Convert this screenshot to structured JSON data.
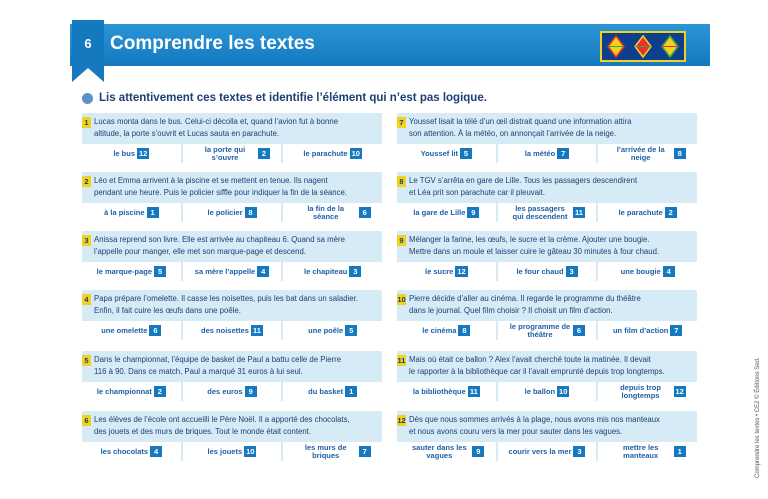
{
  "header": {
    "page_number": "6",
    "title": "Comprendre les textes"
  },
  "instruction": "Lis attentivement ces textes et identifie l’élément qui n’est pas logique.",
  "side_note": "Comprendre les textes • CE2 © Éditions Sed.",
  "colors": {
    "header": "#1479bf",
    "card": "#d6ebf6",
    "number_box": "#f2d21c",
    "badge": "#1479bf"
  },
  "exercises": [
    {
      "n": "1",
      "lines": [
        "Lucas monta dans le bus. Celui-ci décolla et, quand l’avion fut à bonne",
        "altitude, la porte s’ouvrit et Lucas sauta en parachute."
      ],
      "options": [
        {
          "label": "le bus",
          "code": "12"
        },
        {
          "label": "la porte qui s’ouvre",
          "code": "2"
        },
        {
          "label": "le parachute",
          "code": "10"
        }
      ]
    },
    {
      "n": "2",
      "lines": [
        "Léo et Emma arrivent à la piscine et se mettent en tenue. Ils nagent",
        "pendant une heure. Puis le policier siffle pour indiquer la fin de la séance."
      ],
      "options": [
        {
          "label": "à la piscine",
          "code": "1"
        },
        {
          "label": "le policier",
          "code": "8"
        },
        {
          "label": "la fin de la séance",
          "code": "6"
        }
      ]
    },
    {
      "n": "3",
      "lines": [
        "Anissa reprend son livre. Elle est arrivée au chapiteau 6. Quand sa mère",
        "l’appelle pour manger, elle met son marque-page et descend."
      ],
      "options": [
        {
          "label": "le marque-page",
          "code": "5"
        },
        {
          "label": "sa mère l’appelle",
          "code": "4"
        },
        {
          "label": "le chapiteau",
          "code": "3"
        }
      ]
    },
    {
      "n": "4",
      "lines": [
        "Papa prépare l’omelette. Il casse les noisettes, puis les bat dans un saladier.",
        "Enfin, il fait cuire les œufs dans une poêle."
      ],
      "options": [
        {
          "label": "une omelette",
          "code": "6"
        },
        {
          "label": "des noisettes",
          "code": "11"
        },
        {
          "label": "une poêle",
          "code": "5"
        }
      ]
    },
    {
      "n": "5",
      "lines": [
        "Dans le championnat, l’équipe de basket de Paul a battu celle de Pierre",
        "116 à 90. Dans ce match, Paul a marqué 31 euros à lui seul."
      ],
      "options": [
        {
          "label": "le championnat",
          "code": "2"
        },
        {
          "label": "des euros",
          "code": "9"
        },
        {
          "label": "du basket",
          "code": "1"
        }
      ]
    },
    {
      "n": "6",
      "lines": [
        "Les élèves de l’école ont accueilli le Père Noël. Il a apporté des chocolats,",
        "des jouets et des murs de briques. Tout le monde était content."
      ],
      "options": [
        {
          "label": "les chocolats",
          "code": "4"
        },
        {
          "label": "les jouets",
          "code": "10"
        },
        {
          "label": "les murs de briques",
          "code": "7"
        }
      ]
    },
    {
      "n": "7",
      "lines": [
        "Youssef lisait la télé d’un œil distrait quand une information attira",
        "son attention. À la météo, on annonçait l’arrivée de la neige."
      ],
      "options": [
        {
          "label": "Youssef lit",
          "code": "5"
        },
        {
          "label": "la météo",
          "code": "7"
        },
        {
          "label": "l’arrivée de la neige",
          "code": "8"
        }
      ]
    },
    {
      "n": "8",
      "lines": [
        "Le TGV s’arrêta en gare de Lille. Tous les passagers descendirent",
        "et Léa prit son parachute car il pleuvait."
      ],
      "options": [
        {
          "label": "la gare de Lille",
          "code": "9"
        },
        {
          "label": "les passagers qui descendent",
          "code": "11"
        },
        {
          "label": "le parachute",
          "code": "2"
        }
      ]
    },
    {
      "n": "9",
      "lines": [
        "Mélanger la farine, les œufs, le sucre et la crème. Ajouter une bougie.",
        "Mettre dans un moule et laisser cuire le gâteau 30 minutes à four chaud."
      ],
      "options": [
        {
          "label": "le sucre",
          "code": "12"
        },
        {
          "label": "le four chaud",
          "code": "3"
        },
        {
          "label": "une bougie",
          "code": "4"
        }
      ]
    },
    {
      "n": "10",
      "lines": [
        "Pierre décide d’aller au cinéma. Il regarde le programme du théâtre",
        "dans le journal. Quel film choisir ? Il choisit un film d’action."
      ],
      "options": [
        {
          "label": "le cinéma",
          "code": "8"
        },
        {
          "label": "le programme de théâtre",
          "code": "6"
        },
        {
          "label": "un film d’action",
          "code": "7"
        }
      ]
    },
    {
      "n": "11",
      "lines": [
        "Mais où était ce ballon ? Alex l’avait cherché toute la matinée. Il devait",
        "le rapporter à la bibliothèque car il l’avait emprunté depuis trop longtemps."
      ],
      "options": [
        {
          "label": "la bibliothèque",
          "code": "11"
        },
        {
          "label": "le ballon",
          "code": "10"
        },
        {
          "label": "depuis trop longtemps",
          "code": "12"
        }
      ]
    },
    {
      "n": "12",
      "lines": [
        "Dès que nous sommes arrivés à la plage, nous avons mis nos manteaux",
        "et nous avons couru vers la mer pour sauter dans les vagues."
      ],
      "options": [
        {
          "label": "sauter dans les vagues",
          "code": "9"
        },
        {
          "label": "courir vers la mer",
          "code": "3"
        },
        {
          "label": "mettre les manteaux",
          "code": "1"
        }
      ]
    }
  ]
}
